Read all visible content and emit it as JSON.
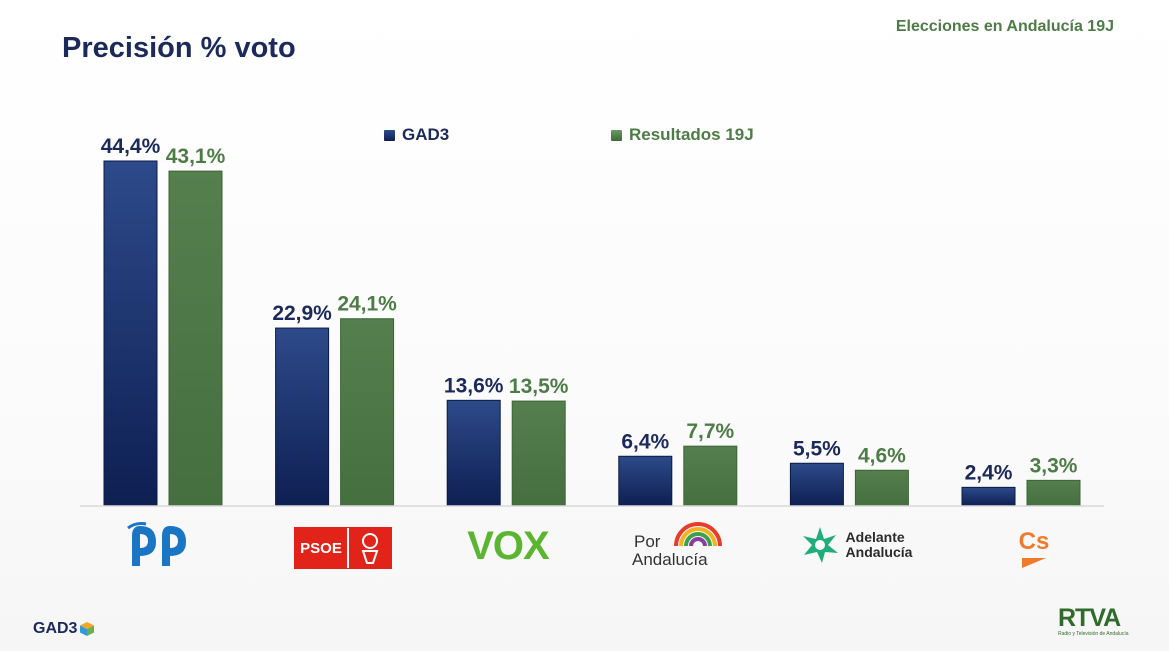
{
  "header": {
    "title": "Precisión % voto",
    "tag": "Elecciones en Andalucía 19J"
  },
  "colors": {
    "gad3": "#1c3370",
    "resultados": "#4e7c47",
    "title": "#1b2a5a"
  },
  "legend": {
    "gad3": "GAD3",
    "resultados": "Resultados 19J"
  },
  "parties": {
    "psoe_text": "PSOE",
    "vox_text": "VOX",
    "por_line1": "Por",
    "por_line2": "Andalucía",
    "adelante_line1": "Adelante",
    "adelante_line2": "Andalucía",
    "cs_text": "Cs"
  },
  "footer": {
    "gad3_logo": "GAD3",
    "rtva_logo": "RTVA",
    "rtva_sub": "Radio y Televisión de Andalucía"
  },
  "chart_data": {
    "type": "bar",
    "categories": [
      "PP",
      "PSOE",
      "VOX",
      "Por Andalucía",
      "Adelante Andalucía",
      "Cs"
    ],
    "series": [
      {
        "name": "GAD3",
        "values": [
          44.4,
          22.9,
          13.6,
          6.4,
          5.5,
          2.4
        ],
        "labels": [
          "44,4%",
          "22,9%",
          "13,6%",
          "6,4%",
          "5,5%",
          "2,4%"
        ],
        "color": "#1c3370"
      },
      {
        "name": "Resultados 19J",
        "values": [
          43.1,
          24.1,
          13.5,
          7.7,
          4.6,
          3.3
        ],
        "labels": [
          "43,1%",
          "24,1%",
          "13,5%",
          "7,7%",
          "4,6%",
          "3,3%"
        ],
        "color": "#4e7c47"
      }
    ],
    "title": "Precisión % voto",
    "ylim": [
      0,
      44.4
    ],
    "grid": false,
    "legend_position": "top"
  }
}
